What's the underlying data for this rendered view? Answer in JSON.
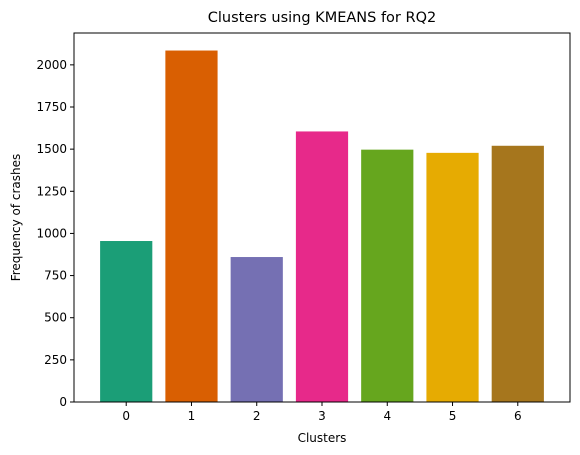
{
  "chart_data": {
    "type": "bar",
    "title": "Clusters using KMEANS for RQ2",
    "xlabel": "Clusters",
    "ylabel": "Frequency of crashes",
    "categories": [
      "0",
      "1",
      "2",
      "3",
      "4",
      "5",
      "6"
    ],
    "values": [
      955,
      2085,
      860,
      1605,
      1497,
      1478,
      1520
    ],
    "colors": [
      "#1b9e77",
      "#d95f02",
      "#7570b3",
      "#e7298a",
      "#66a61e",
      "#e6ab02",
      "#a6761d"
    ],
    "ylim": [
      0,
      2189
    ],
    "yticks": [
      0,
      250,
      500,
      750,
      1000,
      1250,
      1500,
      1750,
      2000
    ],
    "ytick_labels": [
      "0",
      "250",
      "500",
      "750",
      "1000",
      "1250",
      "1500",
      "1750",
      "2000"
    ],
    "grid": false,
    "legend": "none"
  }
}
